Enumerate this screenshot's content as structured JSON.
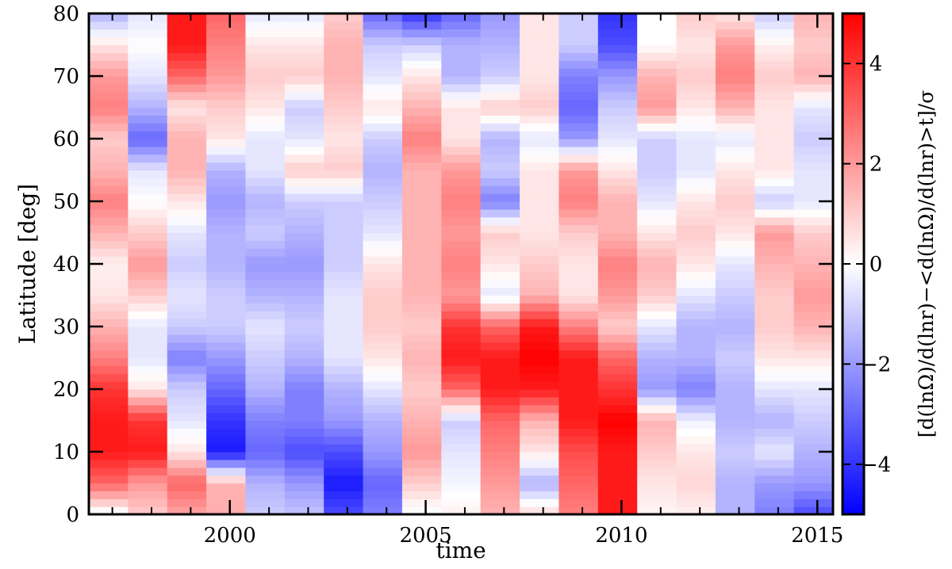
{
  "chart_data": {
    "type": "heatmap",
    "xlabel": "time",
    "ylabel": "Latitude [deg]",
    "colorbar_label": "[d(lnΩ)/d(lnr)−<d(lnΩ)/d(lnr)>t]/σ",
    "colorbar_label_sub_t": "t",
    "xlim": [
      1996.4,
      2015.4
    ],
    "ylim": [
      0,
      80
    ],
    "color_range": [
      -5,
      5
    ],
    "colormap": [
      "#0000ff",
      "#ffffff",
      "#ff0000"
    ],
    "x_ticks": [
      2000,
      2005,
      2010,
      2015
    ],
    "x_tick_labels": [
      "2000",
      "2005",
      "2010",
      "2015"
    ],
    "y_ticks": [
      0,
      10,
      20,
      30,
      40,
      50,
      60,
      70,
      80
    ],
    "y_tick_labels": [
      "0",
      "10",
      "20",
      "30",
      "40",
      "50",
      "60",
      "70",
      "80"
    ],
    "colorbar_ticks": [
      -4,
      -2,
      0,
      2,
      4
    ],
    "colorbar_tick_labels": [
      "−4",
      "−2",
      "0",
      "2",
      "4"
    ],
    "grid": false,
    "time_bins": [
      1996.4,
      1997.4,
      1998.4,
      1999.4,
      2000.4,
      2001.4,
      2002.4,
      2003.4,
      2004.4,
      2005.4,
      2006.4,
      2007.4,
      2008.4,
      2009.4,
      2010.4,
      2011.4,
      2012.4,
      2013.4,
      2014.4,
      2015.4
    ],
    "latitudes": [
      0,
      5,
      10,
      15,
      20,
      25,
      30,
      35,
      40,
      45,
      50,
      55,
      60,
      65,
      70,
      75,
      80
    ],
    "values": [
      [
        -0.3,
        1.0,
        1.8,
        1.6,
        -1.0,
        -1.2,
        -3.5,
        -2.5,
        -0.2,
        0.3,
        1.5,
        0.8,
        2.5,
        4.5,
        0.2,
        0.3,
        -1.5,
        -2.5,
        -3.5
      ],
      [
        3.0,
        2.0,
        3.0,
        1.5,
        -1.5,
        -2.0,
        -4.5,
        -3.0,
        1.0,
        -0.2,
        2.0,
        -1.5,
        3.0,
        4.5,
        0.5,
        0.8,
        -1.5,
        -2.0,
        -2.0
      ],
      [
        4.5,
        4.5,
        0.5,
        -4.5,
        -3.0,
        -3.5,
        -3.5,
        -2.0,
        2.0,
        -0.5,
        2.5,
        0.5,
        3.5,
        4.5,
        1.0,
        0.5,
        -1.0,
        -0.5,
        -1.5
      ],
      [
        4.5,
        4.0,
        -0.5,
        -4.0,
        -2.5,
        -2.5,
        -2.0,
        -1.5,
        1.5,
        -1.0,
        3.0,
        1.5,
        4.5,
        5.0,
        1.5,
        -0.3,
        -1.5,
        -1.5,
        -1.0
      ],
      [
        4.0,
        0.5,
        -1.0,
        -3.0,
        -1.5,
        -2.5,
        -1.5,
        -0.5,
        1.0,
        3.0,
        4.5,
        4.5,
        4.5,
        4.0,
        -2.0,
        -2.5,
        -1.5,
        -0.5,
        -0.5
      ],
      [
        2.5,
        -0.5,
        -2.5,
        -2.0,
        -1.0,
        -1.5,
        -0.5,
        0.5,
        1.5,
        4.5,
        4.5,
        5.0,
        4.5,
        3.0,
        -1.5,
        -1.5,
        -1.0,
        0.5,
        0.5
      ],
      [
        1.5,
        -0.5,
        -1.0,
        -1.0,
        -0.5,
        -1.0,
        -0.5,
        1.0,
        1.0,
        4.0,
        3.0,
        4.5,
        2.5,
        1.0,
        -0.5,
        -1.5,
        -1.5,
        1.0,
        1.5
      ],
      [
        0.5,
        1.0,
        -0.5,
        -1.0,
        -1.5,
        -1.5,
        -0.5,
        1.0,
        1.5,
        2.0,
        -0.5,
        1.5,
        0.5,
        2.0,
        1.0,
        -0.5,
        -1.0,
        1.0,
        2.0
      ],
      [
        0.3,
        2.0,
        -1.0,
        -1.5,
        -2.0,
        -2.0,
        -1.0,
        0.5,
        1.5,
        2.5,
        0.5,
        1.0,
        0.5,
        2.5,
        1.5,
        0.5,
        -0.5,
        1.5,
        1.5
      ],
      [
        1.5,
        1.0,
        -0.5,
        -1.5,
        -1.0,
        -1.5,
        -1.0,
        -0.5,
        1.5,
        2.0,
        1.0,
        0.5,
        1.0,
        1.5,
        0.5,
        1.0,
        0.5,
        2.0,
        1.0
      ],
      [
        2.5,
        0.0,
        0.5,
        -2.0,
        -1.5,
        -1.0,
        -1.0,
        -1.0,
        1.5,
        2.5,
        -2.5,
        0.5,
        2.5,
        1.5,
        -0.5,
        0.5,
        1.0,
        -1.0,
        -0.5
      ],
      [
        1.5,
        -0.5,
        1.5,
        -1.5,
        -0.5,
        1.0,
        1.0,
        -1.5,
        1.5,
        2.0,
        -1.0,
        0.5,
        2.0,
        0.5,
        -1.0,
        -0.5,
        0.5,
        0.5,
        -0.5
      ],
      [
        1.0,
        -3.0,
        1.5,
        0.5,
        -0.5,
        -0.5,
        0.5,
        -1.0,
        2.5,
        0.5,
        -1.5,
        -0.5,
        -2.0,
        -0.5,
        -1.0,
        -0.5,
        -0.5,
        0.5,
        -1.0
      ],
      [
        2.5,
        -1.5,
        0.5,
        1.0,
        0.5,
        -1.0,
        1.0,
        0.5,
        1.5,
        0.5,
        1.0,
        1.0,
        -3.0,
        -1.0,
        2.0,
        0.5,
        1.5,
        0.5,
        -0.5
      ],
      [
        2.0,
        -0.5,
        3.0,
        2.0,
        1.0,
        1.0,
        1.5,
        -0.5,
        0.5,
        -1.5,
        -1.0,
        0.5,
        -2.5,
        -2.0,
        1.5,
        1.0,
        2.5,
        1.0,
        1.5
      ],
      [
        0.5,
        0.0,
        4.5,
        2.5,
        0.5,
        0.5,
        1.5,
        -1.0,
        -1.0,
        -1.5,
        -1.5,
        0.5,
        -1.0,
        -3.5,
        0.0,
        0.5,
        2.0,
        0.3,
        1.0
      ],
      [
        -1.5,
        -0.5,
        4.5,
        3.0,
        -0.5,
        -0.5,
        1.0,
        -3.0,
        -4.0,
        -3.0,
        -2.0,
        0.5,
        -1.0,
        -4.0,
        0.0,
        1.0,
        0.5,
        -1.0,
        1.5
      ]
    ]
  }
}
